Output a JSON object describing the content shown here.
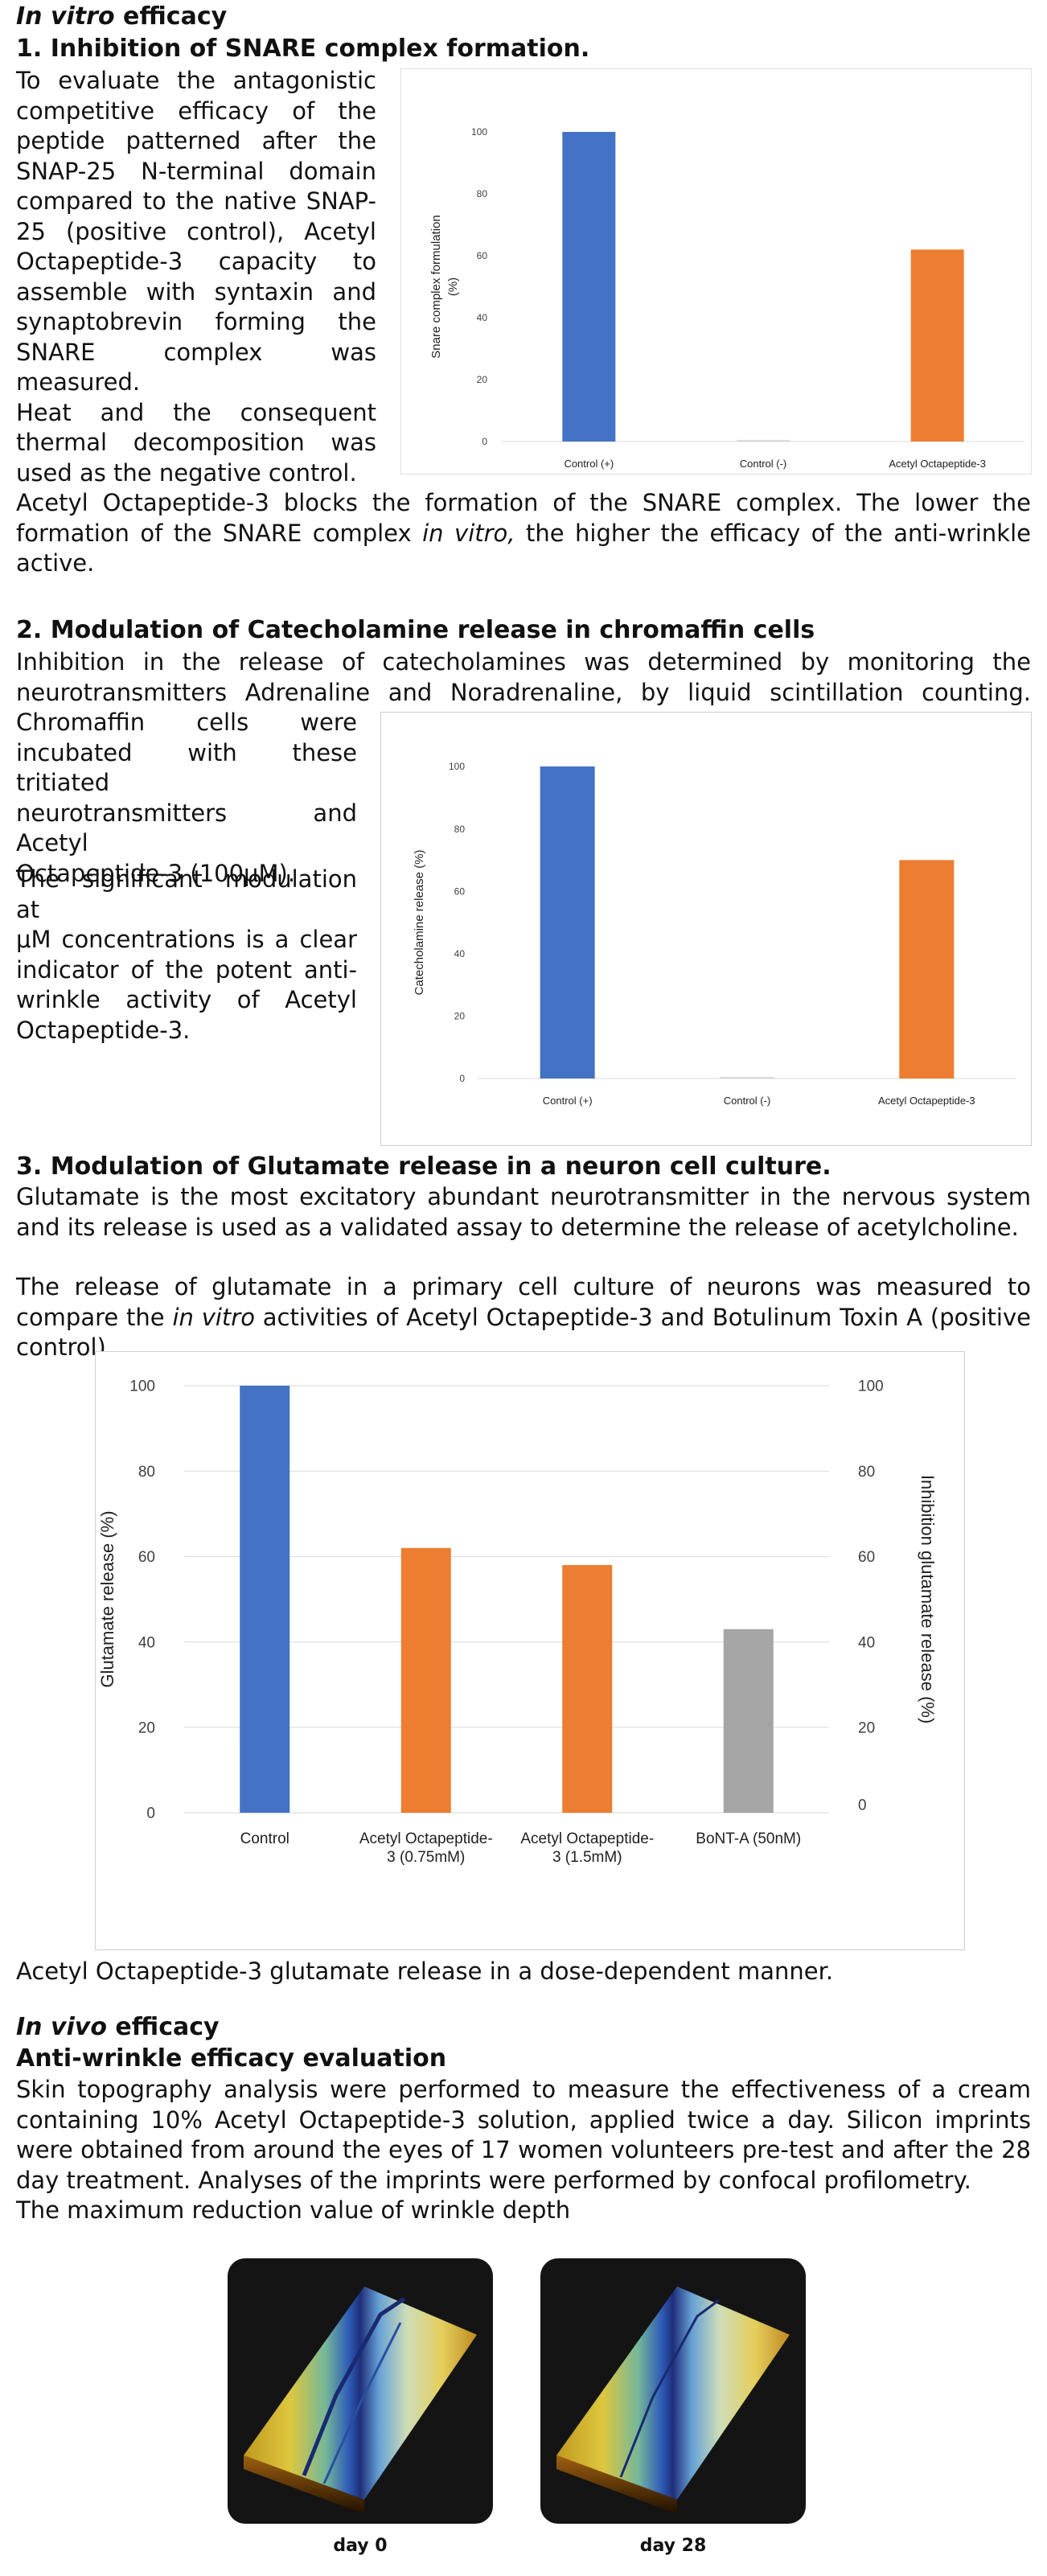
{
  "invitro": {
    "title_italic": "In vitro",
    "title_rest": " efficacy"
  },
  "section1": {
    "heading": "1. Inhibition of SNARE complex formation.",
    "lines": [
      "To evaluate the antagonistic",
      "competitive efficacy of the",
      "peptide patterned after the",
      "SNAP-25 N-terminal domain",
      "compared to the native SNAP-",
      "25 (positive control), Acetyl",
      "Octapeptide-3 capacity to",
      "assemble with syntaxin and",
      "synaptobrevin forming the",
      "SNARE complex was measured.",
      "Heat and the consequent",
      "thermal decomposition was",
      "used as the negative control."
    ],
    "after_a": "Acetyl Octapeptide-3 blocks the formation of the SNARE complex. The lower the formation of the SNARE complex ",
    "after_em": "in vitro,",
    "after_b": " the higher the efficacy of the anti-wrinkle active."
  },
  "section2": {
    "heading": "2. Modulation of Catecholamine release in chromaffin cells",
    "full_line1": "Inhibition in the release of catecholamines was determined by monitoring the",
    "full_line2": "neurotransmitters Adrenaline and Noradrenaline, by liquid scintillation counting.",
    "lines": [
      "Chromaffin cells were",
      "incubated with these tritiated",
      "neurotransmitters and Acetyl",
      "Octapeptide-3 (100μM)."
    ],
    "lines2": [
      "The significant modulation at",
      "μM concentrations is a clear",
      "indicator of the potent anti-",
      "wrinkle activity of Acetyl",
      "Octapeptide-3."
    ]
  },
  "section3": {
    "heading": "3. Modulation of Glutamate release in a neuron cell culture.",
    "para1": "Glutamate is the most excitatory abundant neurotransmitter in the nervous system and its release is used as a validated assay to determine the release of acetylcholine.",
    "para2_a": "The release of glutamate in a primary cell culture of neurons was measured to compare the ",
    "para2_em": "in vitro",
    "para2_b": " activities of Acetyl Octapeptide-3 and Botulinum Toxin A (positive control).",
    "after": "Acetyl Octapeptide-3 glutamate release in a dose-dependent manner."
  },
  "invivo": {
    "title_italic": "In vivo",
    "title_rest": " efficacy",
    "heading": "Anti-wrinkle efficacy evaluation",
    "para": "Skin topography analysis were performed to measure the effectiveness of a cream containing 10% Acetyl Octapeptide-3 solution, applied twice a day. Silicon imprints were obtained from around the eyes of 17 women volunteers pre-test and after the 28 day treatment. Analyses of the imprints were performed by confocal profilometry.",
    "para_last": "The maximum reduction value of wrinkle depth",
    "images": [
      {
        "caption": "day 0"
      },
      {
        "caption": "day 28"
      }
    ]
  },
  "chart_data": [
    {
      "type": "bar",
      "ylabel": "Snare complex formulation (%)",
      "categories": [
        "Control (+)",
        "Control (-)",
        "Acetyl Octapeptide-3"
      ],
      "values": [
        100,
        0.5,
        62
      ],
      "colors": [
        "#4472c4",
        "#d9d9d9",
        "#ed7d31"
      ],
      "ylim": [
        0,
        100
      ],
      "yticks": [
        "0",
        "20",
        "40",
        "60",
        "80",
        "100"
      ],
      "grid": false
    },
    {
      "type": "bar",
      "ylabel": "Catecholamine release (%)",
      "categories": [
        "Control (+)",
        "Control (-)",
        "Acetyl Octapeptide-3"
      ],
      "values": [
        100,
        0.5,
        70
      ],
      "colors": [
        "#4472c4",
        "#d9d9d9",
        "#ed7d31"
      ],
      "ylim": [
        0,
        100
      ],
      "yticks": [
        "0",
        "20",
        "40",
        "60",
        "80",
        "100"
      ],
      "grid": false
    },
    {
      "type": "bar",
      "ylabel": "Glutamate release (%)",
      "y2label": "Inhibition glutamate release (%)",
      "categories": [
        [
          "Control"
        ],
        [
          "Acetyl Octapeptide-",
          "3  (0.75mM)"
        ],
        [
          "Acetyl Octapeptide-",
          "3  (1.5mM)"
        ],
        [
          "BoNT-A (50nM)"
        ]
      ],
      "values": [
        100,
        62,
        58,
        43
      ],
      "colors": [
        "#4472c4",
        "#ed7d31",
        "#ed7d31",
        "#a5a5a5"
      ],
      "ylim": [
        0,
        100
      ],
      "yticks": [
        "0",
        "20",
        "40",
        "60",
        "80",
        "100"
      ],
      "y2ticks": [
        "0",
        "20",
        "40",
        "60",
        "80",
        "100"
      ],
      "grid": true
    }
  ]
}
